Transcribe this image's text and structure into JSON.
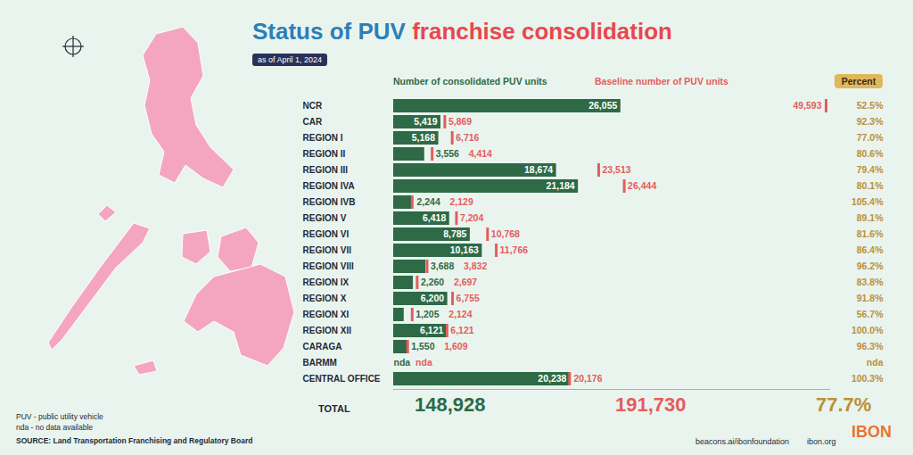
{
  "chart_data": {
    "type": "bar",
    "orientation": "horizontal",
    "title": "Status of PUV franchise consolidation",
    "subtitle": "as of April 1, 2024",
    "categories": [
      "NCR",
      "CAR",
      "REGION I",
      "REGION II",
      "REGION III",
      "REGION IVA",
      "REGION IVB",
      "REGION V",
      "REGION VI",
      "REGION VII",
      "REGION VIII",
      "REGION IX",
      "REGION X",
      "REGION XI",
      "REGION XII",
      "CARAGA",
      "BARMM",
      "CENTRAL OFFICE"
    ],
    "series": [
      {
        "name": "Number of consolidated PUV units",
        "color": "#2d6a45",
        "type": "bar",
        "values": [
          26055,
          5419,
          5168,
          3556,
          18674,
          21184,
          2244,
          6418,
          8785,
          10163,
          3688,
          2260,
          6200,
          1205,
          6121,
          1550,
          null,
          20238
        ],
        "value_labels": [
          "26,055",
          "5,419",
          "5,168",
          "3,556",
          "18,674",
          "21,184",
          "2,244",
          "6,418",
          "8,785",
          "10,163",
          "3,688",
          "2,260",
          "6,200",
          "1,205",
          "6,121",
          "1,550",
          "nda",
          "20,238"
        ]
      },
      {
        "name": "Baseline number of PUV units",
        "color": "#e35d5d",
        "type": "tick",
        "values": [
          49593,
          5869,
          6716,
          4414,
          23513,
          26444,
          2129,
          7204,
          10768,
          11766,
          3832,
          2697,
          6755,
          2124,
          6121,
          1609,
          null,
          20176
        ],
        "value_labels": [
          "49,593",
          "5,869",
          "6,716",
          "4,414",
          "23,513",
          "26,444",
          "2,129",
          "7,204",
          "10,768",
          "11,766",
          "3,832",
          "2,697",
          "6,755",
          "2,124",
          "6,121",
          "1,609",
          "nda",
          "20,176"
        ]
      }
    ],
    "percent": {
      "name": "Percent",
      "color": "#b8913a",
      "values": [
        52.5,
        92.3,
        77.0,
        80.6,
        79.4,
        80.1,
        105.4,
        89.1,
        81.6,
        86.4,
        96.2,
        83.8,
        91.8,
        56.7,
        100.0,
        96.3,
        null,
        100.3
      ],
      "value_labels": [
        "52.5%",
        "92.3%",
        "77.0%",
        "80.6%",
        "79.4%",
        "80.1%",
        "105.4%",
        "89.1%",
        "81.6%",
        "86.4%",
        "96.2%",
        "83.8%",
        "91.8%",
        "56.7%",
        "100.0%",
        "96.3%",
        "nda",
        "100.3%"
      ]
    },
    "total": {
      "label": "TOTAL",
      "values": [
        148928,
        191730,
        77.7
      ],
      "value_labels": [
        "148,928",
        "191,730",
        "77.7%"
      ]
    },
    "xlim": [
      0,
      50000
    ],
    "xticks": [],
    "tick_labels": "y",
    "data_labels": true,
    "notes": [
      "PUV - public utility vehicle",
      "nda - no data available"
    ],
    "source": "SOURCE: Land Transportation Franchising and Regulatory Board",
    "credits": [
      "beacons.ai/ibonfoundation",
      "ibon.org",
      "IBON"
    ]
  }
}
